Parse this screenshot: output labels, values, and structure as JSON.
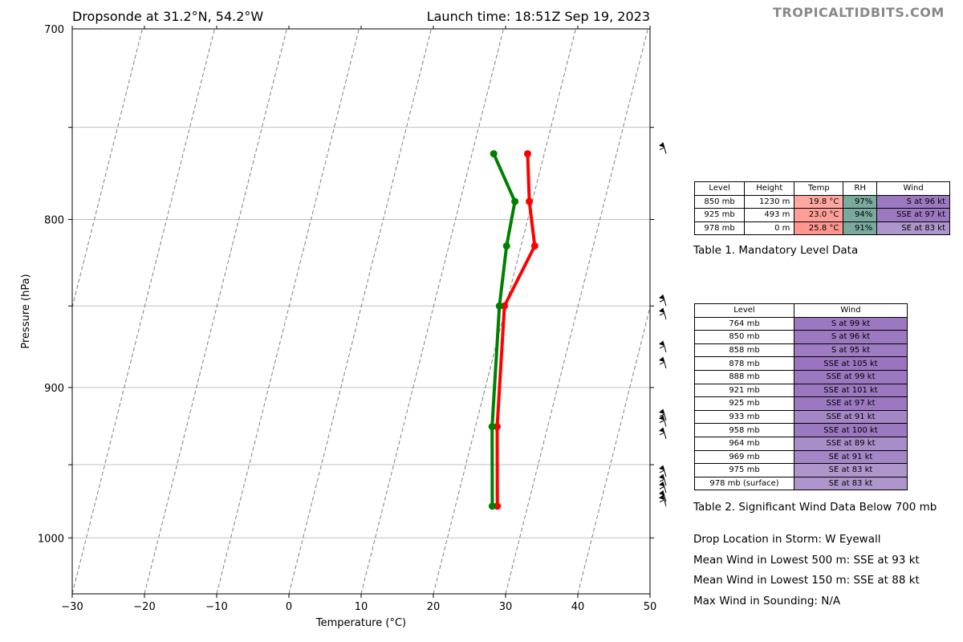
{
  "header": {
    "title_left": "Dropsonde at 31.2°N, 54.2°W",
    "title_right": "Launch time: 18:51Z Sep 19, 2023",
    "brand": "TROPICALTIDBITS.COM"
  },
  "chart_data": {
    "type": "line",
    "xlabel": "Temperature (°C)",
    "ylabel": "Pressure (hPa)",
    "xlim": [
      -30,
      50
    ],
    "ylim": [
      700,
      1040
    ],
    "y_scale": "log",
    "x_ticks": [
      "−30",
      "−20",
      "−10",
      "0",
      "10",
      "20",
      "30",
      "40",
      "50"
    ],
    "x_tick_values": [
      -30,
      -20,
      -10,
      0,
      10,
      20,
      30,
      40,
      50
    ],
    "y_tick_labels": [
      "700",
      "800",
      "900",
      "1000"
    ],
    "y_tick_values": [
      700,
      800,
      900,
      1000
    ],
    "y_gridlines": [
      750,
      800,
      850,
      900,
      950,
      1000
    ],
    "skew_isotherm_temps": [
      -80,
      -70,
      -60,
      -50,
      -40,
      -30,
      -20,
      -10,
      0,
      10,
      20,
      30,
      40
    ],
    "isotherm_color": "#808080",
    "series": [
      {
        "color": "#ff0000",
        "p": [
          764,
          790,
          815,
          850,
          925,
          978
        ],
        "t": [
          17.7,
          19.6,
          21.9,
          19.8,
          23.0,
          25.8
        ]
      },
      {
        "color": "#008000",
        "p": [
          764,
          790,
          815,
          850,
          925,
          978
        ],
        "t": [
          13.0,
          17.6,
          18.0,
          19.1,
          22.3,
          25.1
        ]
      }
    ],
    "wind_barb_pressures": [
      764,
      850,
      858,
      878,
      888,
      921,
      925,
      933,
      958,
      964,
      969,
      975,
      978
    ]
  },
  "table1": {
    "headers": [
      "Level",
      "Height",
      "Temp",
      "RH",
      "Wind"
    ],
    "rows": [
      [
        "850 mb",
        "1230 m",
        "19.8 °C",
        "97%",
        "S at 96 kt"
      ],
      [
        "925 mb",
        "493 m",
        "23.0 °C",
        "94%",
        "SSE at 97 kt"
      ],
      [
        "978 mb",
        "0 m",
        "25.8 °C",
        "91%",
        "SE at 83 kt"
      ]
    ],
    "temp_colors": [
      "#ffa8a2",
      "#ff9e98",
      "#ff9690"
    ],
    "rh_color": "#7aaa9e",
    "wind_colors": [
      "#9c78c0",
      "#9c78c0",
      "#ae96cc"
    ],
    "caption": "Table 1. Mandatory Level Data"
  },
  "table2": {
    "headers": [
      "Level",
      "Wind"
    ],
    "rows": [
      [
        "764 mb",
        "S at 99 kt"
      ],
      [
        "850 mb",
        "S at 96 kt"
      ],
      [
        "858 mb",
        "S at 95 kt"
      ],
      [
        "878 mb",
        "SSE at 105 kt"
      ],
      [
        "888 mb",
        "SSE at 99 kt"
      ],
      [
        "921 mb",
        "SSE at 101 kt"
      ],
      [
        "925 mb",
        "SSE at 97 kt"
      ],
      [
        "933 mb",
        "SSE at 91 kt"
      ],
      [
        "958 mb",
        "SSE at 100 kt"
      ],
      [
        "964 mb",
        "SSE at 89 kt"
      ],
      [
        "969 mb",
        "SE at 91 kt"
      ],
      [
        "975 mb",
        "SE at 83 kt"
      ],
      [
        "978 mb (surface)",
        "SE at 83 kt"
      ]
    ],
    "wind_colors": [
      "#9c78c0",
      "#9c78c0",
      "#9e7cc2",
      "#9a74be",
      "#9c78c0",
      "#9c78c0",
      "#9c78c0",
      "#a286c6",
      "#9c78c0",
      "#a78ec9",
      "#a286c6",
      "#ae96cc",
      "#ae96cc"
    ],
    "caption": "Table 2. Significant Wind Data Below 700 mb"
  },
  "info": {
    "lines": [
      "Drop Location in Storm: W Eyewall",
      "Mean Wind in Lowest 500 m:  SSE at 93 kt",
      "Mean Wind in Lowest 150 m:  SSE at 88 kt",
      "Max Wind in Sounding:  N/A"
    ]
  }
}
